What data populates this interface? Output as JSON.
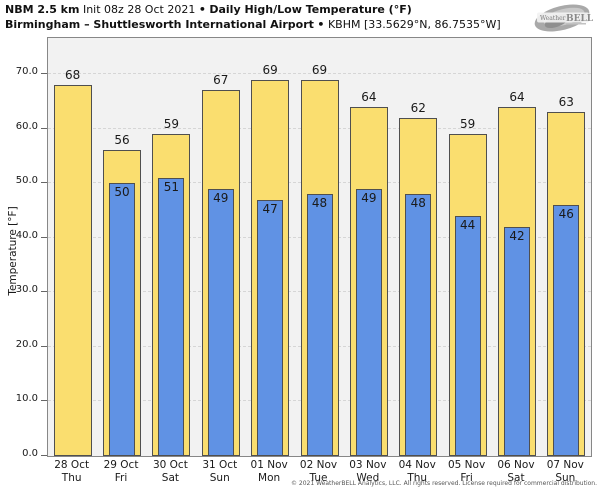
{
  "header": {
    "model": "NBM 2.5 km",
    "init": "Init 08z 28 Oct 2021",
    "separator": "•",
    "parameter": "Daily High/Low Temperature (°F)",
    "station": "Birmingham – Shuttlesworth International Airport",
    "station_info": "KBHM [33.5629°N, 86.7535°W]"
  },
  "logo": {
    "brand_weather": "Weather",
    "brand_bell": "BELL"
  },
  "chart_data": {
    "type": "bar",
    "title": "NBM 2.5 km Daily High/Low Temperature (°F) — Birmingham – Shuttlesworth International Airport (KBHM)",
    "ylabel": "Temperature [°F]",
    "ylim": [
      0,
      76.5
    ],
    "yticks": [
      0,
      10,
      20,
      30,
      40,
      50,
      60,
      70
    ],
    "ytick_labels": [
      "0.0",
      "10.0",
      "20.0",
      "30.0",
      "40.0",
      "50.0",
      "60.0",
      "70.0"
    ],
    "grid": "horizontal-dashed",
    "legend_position": "none",
    "categories": [
      {
        "date": "28 Oct",
        "day": "Thu"
      },
      {
        "date": "29 Oct",
        "day": "Fri"
      },
      {
        "date": "30 Oct",
        "day": "Sat"
      },
      {
        "date": "31 Oct",
        "day": "Sun"
      },
      {
        "date": "01 Nov",
        "day": "Mon"
      },
      {
        "date": "02 Nov",
        "day": "Tue"
      },
      {
        "date": "03 Nov",
        "day": "Wed"
      },
      {
        "date": "04 Nov",
        "day": "Thu"
      },
      {
        "date": "05 Nov",
        "day": "Fri"
      },
      {
        "date": "06 Nov",
        "day": "Sat"
      },
      {
        "date": "07 Nov",
        "day": "Sun"
      }
    ],
    "series": [
      {
        "name": "Daily High",
        "color": "#FADE6F",
        "values": [
          68,
          56,
          59,
          67,
          69,
          69,
          64,
          62,
          59,
          64,
          63
        ]
      },
      {
        "name": "Daily Low",
        "color": "#6092E4",
        "values": [
          null,
          50,
          51,
          49,
          47,
          48,
          49,
          48,
          44,
          42,
          46
        ]
      }
    ]
  },
  "colors": {
    "high_bar": "#FADE6F",
    "low_bar": "#6092E4",
    "bar_border": "#4F4F4F",
    "plot_background": "#F2F2F2",
    "gridline": "#D6D6D6"
  },
  "footer": {
    "copyright": "© 2021 WeatherBELL Analytics, LLC. All rights reserved. License required for commercial distribution."
  }
}
